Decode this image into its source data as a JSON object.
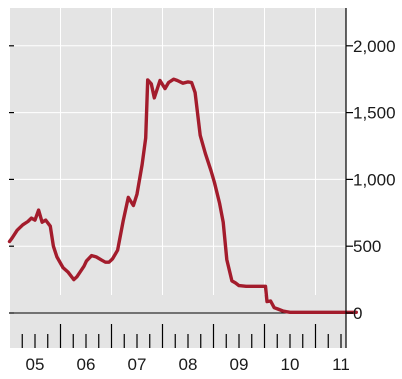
{
  "chart_data": {
    "type": "line",
    "title": "",
    "xlabel": "",
    "ylabel": "",
    "x_range": [
      2004.5,
      2011.3
    ],
    "ylim": [
      -250,
      2250
    ],
    "y_ticks": [
      0,
      500,
      1000,
      1500,
      2000
    ],
    "y_tick_labels": [
      "0",
      "500",
      "1,000",
      "1,500",
      "2,000"
    ],
    "x_tick_labels": [
      {
        "label": "05",
        "x": 2005
      },
      {
        "label": "06",
        "x": 2006
      },
      {
        "label": "07",
        "x": 2007
      },
      {
        "label": "08",
        "x": 2008
      },
      {
        "label": "09",
        "x": 2009
      },
      {
        "label": "10",
        "x": 2010
      },
      {
        "label": "11",
        "x": 2011
      }
    ],
    "year_boundaries": [
      2005,
      2006,
      2007,
      2008,
      2009,
      2010,
      2011
    ],
    "grid": true,
    "y_axis_side": "right",
    "colors": {
      "plot_bg": "#e4e4e4",
      "grid": "#ffffff",
      "line": "#a31c2c",
      "axis": "#000000"
    },
    "series": [
      {
        "name": "",
        "x": [
          2004.5,
          2004.55,
          2004.65,
          2004.76,
          2004.86,
          2004.93,
          2005.0,
          2005.07,
          2005.14,
          2005.21,
          2005.3,
          2005.36,
          2005.43,
          2005.55,
          2005.65,
          2005.76,
          2005.82,
          2005.89,
          2005.96,
          2006.01,
          2006.11,
          2006.2,
          2006.31,
          2006.38,
          2006.45,
          2006.52,
          2006.62,
          2006.73,
          2006.83,
          2006.93,
          2007.0,
          2007.1,
          2007.17,
          2007.21,
          2007.28,
          2007.34,
          2007.45,
          2007.55,
          2007.62,
          2007.72,
          2007.79,
          2007.9,
          2008.0,
          2008.07,
          2008.14,
          2008.24,
          2008.34,
          2008.45,
          2008.52,
          2008.62,
          2008.69,
          2008.76,
          2008.86,
          2008.93,
          2009.0,
          2009.14,
          2009.28,
          2009.38,
          2009.52,
          2009.55,
          2009.62,
          2009.69,
          2009.76,
          2009.86,
          2009.93,
          2010.0,
          2010.25,
          2010.52,
          2010.79,
          2011.0,
          2011.3
        ],
        "y": [
          535,
          560,
          620,
          660,
          685,
          710,
          695,
          770,
          680,
          695,
          650,
          500,
          420,
          340,
          305,
          250,
          270,
          310,
          350,
          390,
          430,
          420,
          395,
          380,
          380,
          405,
          470,
          690,
          865,
          805,
          890,
          1110,
          1310,
          1745,
          1715,
          1610,
          1740,
          1680,
          1725,
          1750,
          1740,
          1720,
          1730,
          1725,
          1650,
          1330,
          1195,
          1065,
          975,
          820,
          680,
          400,
          240,
          225,
          205,
          200,
          200,
          200,
          200,
          85,
          90,
          40,
          30,
          15,
          10,
          5,
          5,
          5,
          5,
          5,
          5
        ]
      }
    ]
  }
}
